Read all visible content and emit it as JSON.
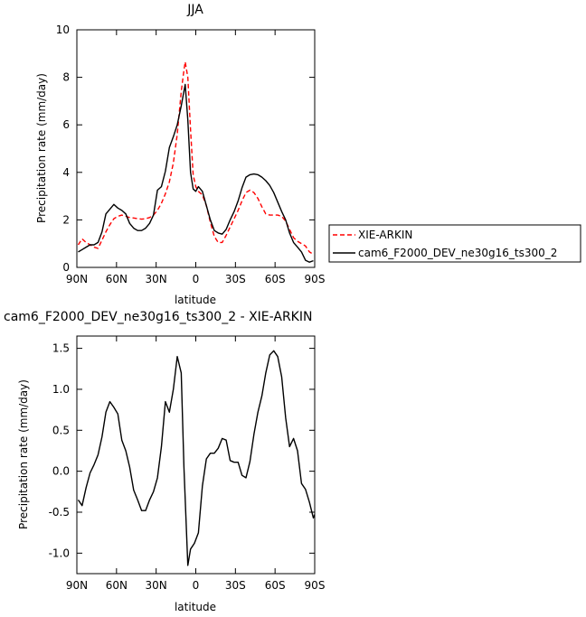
{
  "chart_data": [
    {
      "type": "line",
      "title": "JJA",
      "xlabel": "latitude",
      "ylabel": "Precipitation rate (mm/day)",
      "xlim": [
        90,
        -90
      ],
      "ylim": [
        0,
        10
      ],
      "x_ticks": [
        90,
        60,
        30,
        0,
        -30,
        -60,
        -90
      ],
      "x_tick_labels": [
        "90N",
        "60N",
        "30N",
        "0",
        "30S",
        "60S",
        "90S"
      ],
      "y_ticks": [
        0,
        2,
        4,
        6,
        8,
        10
      ],
      "y_tick_labels": [
        "0",
        "2",
        "4",
        "6",
        "8",
        "10"
      ],
      "legend_placement": "right",
      "series": [
        {
          "name": "XIE-ARKIN",
          "color": "#ff0000",
          "style": "dashed",
          "points": [
            [
              89,
              0.95
            ],
            [
              86,
              1.2
            ],
            [
              83,
              1.05
            ],
            [
              80,
              0.95
            ],
            [
              77,
              0.85
            ],
            [
              74,
              0.8
            ],
            [
              71,
              1.15
            ],
            [
              68,
              1.5
            ],
            [
              65,
              1.8
            ],
            [
              62,
              2.05
            ],
            [
              59,
              2.15
            ],
            [
              56,
              2.2
            ],
            [
              53,
              2.15
            ],
            [
              50,
              2.1
            ],
            [
              47,
              2.08
            ],
            [
              44,
              2.05
            ],
            [
              41,
              2.03
            ],
            [
              38,
              2.05
            ],
            [
              35,
              2.1
            ],
            [
              32,
              2.2
            ],
            [
              29,
              2.4
            ],
            [
              26,
              2.7
            ],
            [
              23,
              3.1
            ],
            [
              20,
              3.6
            ],
            [
              17,
              4.4
            ],
            [
              14,
              5.6
            ],
            [
              11,
              7.4
            ],
            [
              9,
              8.3
            ],
            [
              8,
              8.65
            ],
            [
              6,
              8.0
            ],
            [
              4,
              5.8
            ],
            [
              2,
              3.9
            ],
            [
              0,
              3.4
            ],
            [
              -2,
              3.2
            ],
            [
              -5,
              3.05
            ],
            [
              -8,
              2.6
            ],
            [
              -11,
              1.9
            ],
            [
              -14,
              1.3
            ],
            [
              -17,
              1.05
            ],
            [
              -20,
              1.05
            ],
            [
              -23,
              1.35
            ],
            [
              -26,
              1.7
            ],
            [
              -29,
              2.05
            ],
            [
              -32,
              2.4
            ],
            [
              -35,
              2.8
            ],
            [
              -38,
              3.15
            ],
            [
              -41,
              3.25
            ],
            [
              -44,
              3.15
            ],
            [
              -47,
              2.9
            ],
            [
              -50,
              2.55
            ],
            [
              -53,
              2.25
            ],
            [
              -56,
              2.2
            ],
            [
              -59,
              2.2
            ],
            [
              -62,
              2.2
            ],
            [
              -65,
              2.15
            ],
            [
              -68,
              1.95
            ],
            [
              -71,
              1.6
            ],
            [
              -74,
              1.25
            ],
            [
              -77,
              1.1
            ],
            [
              -80,
              1.0
            ],
            [
              -83,
              0.9
            ],
            [
              -86,
              0.65
            ],
            [
              -89,
              0.55
            ]
          ]
        },
        {
          "name": "cam6_F2000_DEV_ne30g16_ts300_2",
          "color": "#000000",
          "style": "solid",
          "points": [
            [
              89,
              0.65
            ],
            [
              86,
              0.75
            ],
            [
              83,
              0.85
            ],
            [
              80,
              0.95
            ],
            [
              77,
              0.95
            ],
            [
              74,
              1.05
            ],
            [
              71,
              1.5
            ],
            [
              68,
              2.25
            ],
            [
              65,
              2.45
            ],
            [
              62,
              2.65
            ],
            [
              59,
              2.5
            ],
            [
              56,
              2.4
            ],
            [
              53,
              2.25
            ],
            [
              50,
              1.85
            ],
            [
              47,
              1.65
            ],
            [
              44,
              1.55
            ],
            [
              41,
              1.55
            ],
            [
              38,
              1.65
            ],
            [
              35,
              1.85
            ],
            [
              32,
              2.2
            ],
            [
              29,
              3.25
            ],
            [
              26,
              3.4
            ],
            [
              23,
              4.05
            ],
            [
              20,
              5.05
            ],
            [
              17,
              5.5
            ],
            [
              14,
              6.0
            ],
            [
              11,
              6.8
            ],
            [
              8,
              7.7
            ],
            [
              6,
              6.2
            ],
            [
              4,
              4.0
            ],
            [
              2,
              3.3
            ],
            [
              0,
              3.2
            ],
            [
              -2,
              3.4
            ],
            [
              -5,
              3.2
            ],
            [
              -8,
              2.6
            ],
            [
              -11,
              2.0
            ],
            [
              -14,
              1.55
            ],
            [
              -17,
              1.45
            ],
            [
              -20,
              1.4
            ],
            [
              -23,
              1.6
            ],
            [
              -26,
              2.0
            ],
            [
              -29,
              2.35
            ],
            [
              -32,
              2.8
            ],
            [
              -35,
              3.35
            ],
            [
              -38,
              3.8
            ],
            [
              -41,
              3.9
            ],
            [
              -44,
              3.93
            ],
            [
              -47,
              3.9
            ],
            [
              -50,
              3.8
            ],
            [
              -53,
              3.65
            ],
            [
              -56,
              3.45
            ],
            [
              -59,
              3.15
            ],
            [
              -62,
              2.75
            ],
            [
              -65,
              2.35
            ],
            [
              -68,
              2.0
            ],
            [
              -71,
              1.45
            ],
            [
              -74,
              1.05
            ],
            [
              -77,
              0.85
            ],
            [
              -80,
              0.65
            ],
            [
              -83,
              0.3
            ],
            [
              -86,
              0.22
            ],
            [
              -89,
              0.28
            ]
          ]
        }
      ]
    },
    {
      "type": "line",
      "title": "cam6_F2000_DEV_ne30g16_ts300_2 - XIE-ARKIN",
      "xlabel": "latitude",
      "ylabel": "Precipitation rate (mm/day)",
      "xlim": [
        90,
        -90
      ],
      "ylim": [
        -1.25,
        1.65
      ],
      "x_ticks": [
        90,
        60,
        30,
        0,
        -30,
        -60,
        -90
      ],
      "x_tick_labels": [
        "90N",
        "60N",
        "30N",
        "0",
        "30S",
        "60S",
        "90S"
      ],
      "y_ticks": [
        -1.0,
        -0.5,
        0.0,
        0.5,
        1.0,
        1.5
      ],
      "y_tick_labels": [
        "-1.0",
        "-0.5",
        "0.0",
        "0.5",
        "1.0",
        "1.5"
      ],
      "series": [
        {
          "color": "#000000",
          "style": "solid",
          "points": [
            [
              89,
              -0.35
            ],
            [
              86,
              -0.42
            ],
            [
              83,
              -0.2
            ],
            [
              80,
              -0.02
            ],
            [
              77,
              0.08
            ],
            [
              74,
              0.2
            ],
            [
              71,
              0.42
            ],
            [
              68,
              0.72
            ],
            [
              65,
              0.85
            ],
            [
              62,
              0.78
            ],
            [
              59,
              0.7
            ],
            [
              56,
              0.38
            ],
            [
              53,
              0.25
            ],
            [
              50,
              0.05
            ],
            [
              47,
              -0.23
            ],
            [
              44,
              -0.35
            ],
            [
              41,
              -0.48
            ],
            [
              38,
              -0.48
            ],
            [
              35,
              -0.35
            ],
            [
              32,
              -0.25
            ],
            [
              29,
              -0.08
            ],
            [
              26,
              0.3
            ],
            [
              23,
              0.85
            ],
            [
              20,
              0.72
            ],
            [
              17,
              1.0
            ],
            [
              14,
              1.4
            ],
            [
              11,
              1.2
            ],
            [
              9,
              0.05
            ],
            [
              6,
              -1.15
            ],
            [
              4,
              -0.95
            ],
            [
              1,
              -0.88
            ],
            [
              -2,
              -0.75
            ],
            [
              -5,
              -0.18
            ],
            [
              -8,
              0.15
            ],
            [
              -11,
              0.22
            ],
            [
              -14,
              0.22
            ],
            [
              -17,
              0.28
            ],
            [
              -20,
              0.4
            ],
            [
              -23,
              0.38
            ],
            [
              -26,
              0.13
            ],
            [
              -29,
              0.11
            ],
            [
              -32,
              0.11
            ],
            [
              -35,
              -0.05
            ],
            [
              -38,
              -0.08
            ],
            [
              -41,
              0.12
            ],
            [
              -44,
              0.45
            ],
            [
              -47,
              0.72
            ],
            [
              -50,
              0.92
            ],
            [
              -53,
              1.2
            ],
            [
              -56,
              1.42
            ],
            [
              -59,
              1.47
            ],
            [
              -62,
              1.4
            ],
            [
              -65,
              1.15
            ],
            [
              -68,
              0.65
            ],
            [
              -71,
              0.3
            ],
            [
              -74,
              0.4
            ],
            [
              -77,
              0.25
            ],
            [
              -80,
              -0.15
            ],
            [
              -83,
              -0.22
            ],
            [
              -86,
              -0.38
            ],
            [
              -89,
              -0.57
            ],
            [
              -92,
              -0.45
            ]
          ]
        }
      ]
    }
  ]
}
